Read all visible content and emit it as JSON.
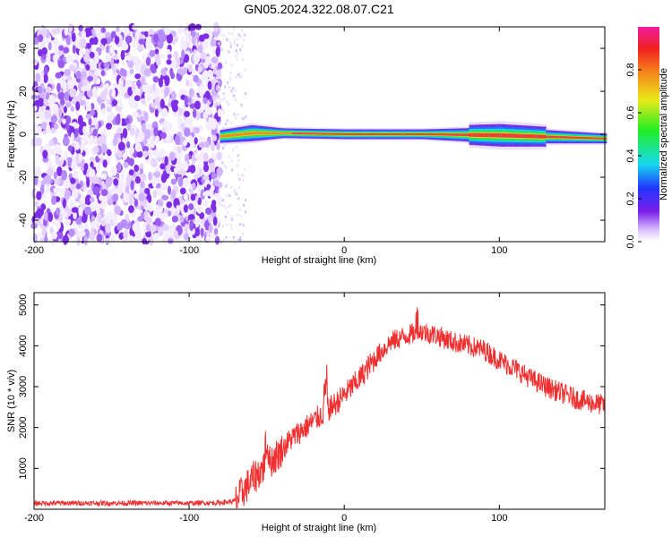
{
  "title": "GN05.2024.322.08.07.C21",
  "chart_data": [
    {
      "type": "heatmap",
      "xlabel": "Height of straight line (km)",
      "ylabel": "Frequency (Hz)",
      "xlim": [
        -200,
        168
      ],
      "ylim": [
        -50,
        50
      ],
      "xticks": [
        "-200",
        "-100",
        "0",
        "100"
      ],
      "yticks": [
        "-40",
        "-20",
        "0",
        "20",
        "40"
      ],
      "colorbar": {
        "label": "Normalized spectral amplitude",
        "range": [
          0.0,
          1.0
        ],
        "ticks": [
          "0.0",
          "0.2",
          "0.4",
          "0.6",
          "0.8"
        ]
      },
      "noise_region_x": [
        -200,
        -80
      ],
      "signal_band": [
        {
          "x": -80,
          "freq": -1.0,
          "width": 4
        },
        {
          "x": -60,
          "freq": 0.5,
          "width": 5
        },
        {
          "x": -40,
          "freq": 0.5,
          "width": 3
        },
        {
          "x": 0,
          "freq": 0.0,
          "width": 3
        },
        {
          "x": 50,
          "freq": 0.0,
          "width": 3
        },
        {
          "x": 100,
          "freq": -0.5,
          "width": 5
        },
        {
          "x": 168,
          "freq": -2.0,
          "width": 3
        }
      ],
      "grid": false
    },
    {
      "type": "line",
      "xlabel": "Height of straight line (km)",
      "ylabel": "SNR (10 * v/v)",
      "xlim": [
        -200,
        168
      ],
      "ylim": [
        0,
        5300
      ],
      "xticks": [
        "-200",
        "-100",
        "0",
        "100"
      ],
      "yticks": [
        "1000",
        "2000",
        "3000",
        "4000",
        "5000"
      ],
      "color": "#f03030",
      "series": [
        {
          "x": [
            -200,
            -150,
            -100,
            -80,
            -70,
            -65,
            -60,
            -55,
            -50,
            -45,
            -40,
            -35,
            -30,
            -25,
            -20,
            -15,
            -10,
            -5,
            0,
            10,
            20,
            30,
            40,
            50,
            60,
            70,
            80,
            90,
            100,
            110,
            120,
            130,
            140,
            150,
            160,
            168
          ],
          "values": [
            150,
            150,
            150,
            160,
            200,
            450,
            700,
            900,
            1100,
            1250,
            1450,
            1700,
            1850,
            2000,
            2150,
            2300,
            2450,
            2600,
            2800,
            3200,
            3700,
            4100,
            4250,
            4350,
            4250,
            4100,
            4000,
            3900,
            3650,
            3450,
            3200,
            3000,
            2850,
            2700,
            2600,
            2550
          ]
        }
      ],
      "grid": false
    }
  ]
}
